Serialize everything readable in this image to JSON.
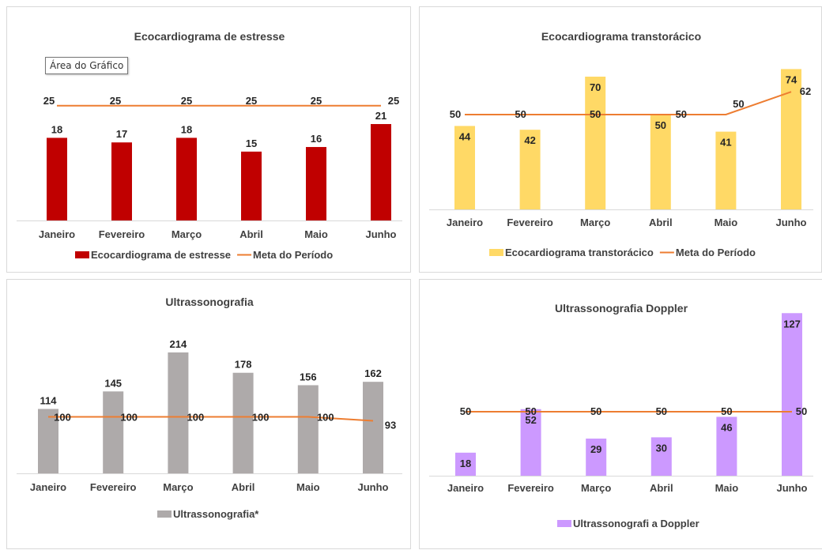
{
  "tooltip": "Área do Gráfico",
  "chart_data": [
    {
      "type": "bar",
      "title": "Ecocardiograma de estresse",
      "categories": [
        "Janeiro",
        "Fevereiro",
        "Março",
        "Abril",
        "Maio",
        "Junho"
      ],
      "series": [
        {
          "name": "Ecocardiograma de estresse",
          "type": "bar",
          "values": [
            18,
            17,
            18,
            15,
            16,
            21
          ],
          "color": "#c00000"
        },
        {
          "name": "Meta do Período",
          "type": "line",
          "values": [
            25,
            25,
            25,
            25,
            25,
            25
          ],
          "color": "#ed7d31"
        }
      ],
      "legend": "bottom"
    },
    {
      "type": "bar",
      "title": "Ecocardiograma transtorácico",
      "categories": [
        "Janeiro",
        "Fevereiro",
        "Março",
        "Abril",
        "Maio",
        "Junho"
      ],
      "series": [
        {
          "name": "Ecocardiograma transtorácico",
          "type": "bar",
          "values": [
            44,
            42,
            70,
            50,
            41,
            74
          ],
          "color": "#ffd966"
        },
        {
          "name": "Meta do Período",
          "type": "line",
          "values": [
            50,
            50,
            50,
            50,
            50,
            62
          ],
          "color": "#ed7d31"
        }
      ],
      "legend": "bottom"
    },
    {
      "type": "bar",
      "title": "Ultrassonografia",
      "categories": [
        "Janeiro",
        "Fevereiro",
        "Março",
        "Abril",
        "Maio",
        "Junho"
      ],
      "series": [
        {
          "name": "Ultrassonografia*",
          "type": "bar",
          "values": [
            114,
            145,
            214,
            178,
            156,
            162
          ],
          "color": "#aeaaaa"
        },
        {
          "type": "line",
          "values": [
            100,
            100,
            100,
            100,
            100,
            93
          ],
          "color": "#ed7d31"
        }
      ],
      "legend": "bottom"
    },
    {
      "type": "bar",
      "title": "Ultrassonografia Doppler",
      "categories": [
        "Janeiro",
        "Fevereiro",
        "Março",
        "Abril",
        "Maio",
        "Junho"
      ],
      "series": [
        {
          "name": "Ultrassonografi a Doppler",
          "type": "bar",
          "values": [
            18,
            52,
            29,
            30,
            46,
            127
          ],
          "color": "#cc99ff"
        },
        {
          "type": "line",
          "values": [
            50,
            50,
            50,
            50,
            50,
            50
          ],
          "color": "#ed7d31"
        }
      ],
      "legend": "bottom"
    }
  ]
}
